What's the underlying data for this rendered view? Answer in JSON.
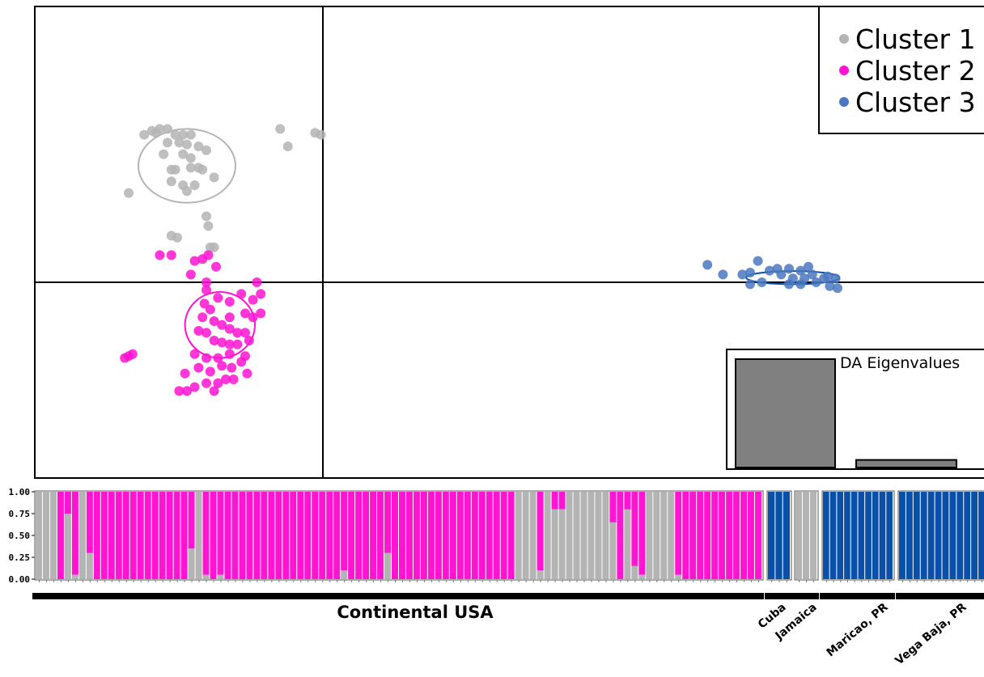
{
  "colors": {
    "cluster1": "#b4b4b4",
    "cluster2": "#ff14d2",
    "cluster3": "#0a4fa8",
    "cluster3_point": "#4a78c0",
    "eigen_bar": "#808080"
  },
  "chart_data": [
    {
      "type": "scatter",
      "title": "",
      "xlabel": "",
      "ylabel": "",
      "axes_lines": "cross at origin",
      "legend_position": "top-right",
      "legend": [
        "Cluster 1",
        "Cluster 2",
        "Cluster 3"
      ],
      "series": [
        {
          "name": "Cluster 1",
          "points": [
            [
              -4.6,
              3.8
            ],
            [
              -4.4,
              3.9
            ],
            [
              -4.2,
              3.95
            ],
            [
              -4.0,
              3.95
            ],
            [
              -4.3,
              3.85
            ],
            [
              -3.8,
              3.8
            ],
            [
              -3.6,
              3.8
            ],
            [
              -3.4,
              3.8
            ],
            [
              -4.0,
              3.6
            ],
            [
              -3.7,
              3.6
            ],
            [
              -3.5,
              3.55
            ],
            [
              -3.2,
              3.5
            ],
            [
              -3.0,
              3.4
            ],
            [
              -4.1,
              3.3
            ],
            [
              -3.6,
              3.3
            ],
            [
              -3.4,
              3.2
            ],
            [
              -3.9,
              2.9
            ],
            [
              -3.8,
              2.9
            ],
            [
              -3.4,
              2.95
            ],
            [
              -3.2,
              2.95
            ],
            [
              -3.1,
              2.9
            ],
            [
              -3.9,
              2.6
            ],
            [
              -3.6,
              2.5
            ],
            [
              -3.3,
              2.5
            ],
            [
              -3.5,
              2.35
            ],
            [
              -5.0,
              2.3
            ],
            [
              -2.8,
              2.7
            ],
            [
              -1.1,
              3.95
            ],
            [
              -0.9,
              3.5
            ],
            [
              -0.2,
              3.85
            ],
            [
              -0.05,
              3.8
            ],
            [
              -3.0,
              1.7
            ],
            [
              -2.95,
              1.45
            ],
            [
              -3.9,
              1.2
            ],
            [
              -3.75,
              1.15
            ],
            [
              -2.9,
              0.9
            ],
            [
              -2.8,
              0.9
            ]
          ]
        },
        {
          "name": "Cluster 2",
          "points": [
            [
              -4.2,
              0.7
            ],
            [
              -3.9,
              0.7
            ],
            [
              -3.3,
              0.55
            ],
            [
              -3.1,
              0.6
            ],
            [
              -2.95,
              0.7
            ],
            [
              -2.75,
              0.4
            ],
            [
              -3.4,
              0.2
            ],
            [
              -3.0,
              0.0
            ],
            [
              -3.0,
              -0.2
            ],
            [
              -2.7,
              -0.4
            ],
            [
              -2.4,
              -0.5
            ],
            [
              -2.1,
              -0.3
            ],
            [
              -1.7,
              0.0
            ],
            [
              -1.6,
              -0.3
            ],
            [
              -1.8,
              -0.45
            ],
            [
              -1.6,
              -0.8
            ],
            [
              -1.8,
              -0.9
            ],
            [
              -2.0,
              -0.8
            ],
            [
              -2.4,
              -0.9
            ],
            [
              -3.05,
              -0.55
            ],
            [
              -2.9,
              -0.7
            ],
            [
              -3.1,
              -0.9
            ],
            [
              -2.8,
              -1.0
            ],
            [
              -3.2,
              -1.25
            ],
            [
              -3.0,
              -1.3
            ],
            [
              -2.6,
              -1.1
            ],
            [
              -2.4,
              -1.2
            ],
            [
              -2.2,
              -1.3
            ],
            [
              -2.0,
              -1.3
            ],
            [
              -2.8,
              -1.5
            ],
            [
              -2.6,
              -1.55
            ],
            [
              -2.4,
              -1.6
            ],
            [
              -2.2,
              -1.6
            ],
            [
              -1.9,
              -1.5
            ],
            [
              -2.0,
              -1.9
            ],
            [
              -2.4,
              -1.85
            ],
            [
              -2.7,
              -1.95
            ],
            [
              -3.0,
              -1.95
            ],
            [
              -3.3,
              -1.85
            ],
            [
              -3.2,
              -2.2
            ],
            [
              -2.9,
              -2.3
            ],
            [
              -2.6,
              -2.15
            ],
            [
              -2.35,
              -2.2
            ],
            [
              -2.1,
              -2.05
            ],
            [
              -2.5,
              -2.5
            ],
            [
              -2.7,
              -2.6
            ],
            [
              -3.0,
              -2.6
            ],
            [
              -3.3,
              -2.7
            ],
            [
              -3.55,
              -2.35
            ],
            [
              -2.8,
              -2.8
            ],
            [
              -2.3,
              -2.5
            ],
            [
              -1.95,
              -2.35
            ],
            [
              -5.0,
              -1.9
            ],
            [
              -5.1,
              -1.95
            ],
            [
              -4.9,
              -1.85
            ],
            [
              -3.7,
              -2.8
            ],
            [
              -3.5,
              -2.8
            ]
          ]
        },
        {
          "name": "Cluster 3",
          "points": [
            [
              9.9,
              0.45
            ],
            [
              10.3,
              0.2
            ],
            [
              10.8,
              0.2
            ],
            [
              11.0,
              0.25
            ],
            [
              11.2,
              0.55
            ],
            [
              11.3,
              0.0
            ],
            [
              11.0,
              -0.05
            ],
            [
              11.7,
              0.35
            ],
            [
              12.0,
              0.35
            ],
            [
              12.3,
              0.3
            ],
            [
              12.5,
              0.4
            ],
            [
              12.6,
              0.2
            ],
            [
              12.4,
              0.1
            ],
            [
              12.1,
              0.1
            ],
            [
              12.0,
              -0.05
            ],
            [
              12.3,
              -0.05
            ],
            [
              12.7,
              0.0
            ],
            [
              12.9,
              0.1
            ],
            [
              13.0,
              0.15
            ],
            [
              13.2,
              0.1
            ],
            [
              13.05,
              -0.1
            ],
            [
              13.25,
              -0.15
            ],
            [
              11.8,
              0.2
            ],
            [
              11.5,
              0.3
            ]
          ]
        }
      ],
      "ellipses": [
        {
          "series": "Cluster 1",
          "center": [
            -3.5,
            3.0
          ],
          "rx": 1.25,
          "ry": 0.95
        },
        {
          "series": "Cluster 2",
          "center": [
            -2.65,
            -1.1
          ],
          "rx": 0.9,
          "ry": 0.85
        },
        {
          "series": "Cluster 3",
          "center": [
            12.1,
            0.12
          ],
          "rx": 1.2,
          "ry": 0.17
        }
      ]
    },
    {
      "type": "bar",
      "title": "DA Eigenvalues",
      "values": [
        100,
        7
      ]
    },
    {
      "type": "bar",
      "subtype": "stacked_structure",
      "ylabel": "",
      "yticks": [
        "0.00",
        "0.25",
        "0.50",
        "0.75",
        "1.00"
      ],
      "series_names": [
        "Cluster 1",
        "Cluster 2",
        "Cluster 3"
      ],
      "populations": [
        {
          "name": "Continental USA",
          "segments": [
            [
              1,
              0
            ],
            [
              1,
              0
            ],
            [
              1,
              0
            ],
            [
              0,
              1
            ],
            [
              0.75,
              0.25
            ],
            [
              0.05,
              0.95
            ],
            [
              1,
              0
            ],
            [
              0.3,
              0.7
            ],
            [
              0,
              1
            ],
            [
              0,
              1
            ],
            [
              0,
              1
            ],
            [
              0,
              1
            ],
            [
              0,
              1
            ],
            [
              0,
              1
            ],
            [
              0,
              1
            ],
            [
              0,
              1
            ],
            [
              0,
              1
            ],
            [
              0,
              1
            ],
            [
              0,
              1
            ],
            [
              0,
              1
            ],
            [
              0,
              1
            ],
            [
              0.35,
              0.65
            ],
            [
              1,
              0
            ],
            [
              0.05,
              0.95
            ],
            [
              0,
              1
            ],
            [
              0.05,
              0.95
            ],
            [
              0,
              1
            ],
            [
              0,
              1
            ],
            [
              0,
              1
            ],
            [
              0,
              1
            ],
            [
              0,
              1
            ],
            [
              0,
              1
            ],
            [
              0,
              1
            ],
            [
              0,
              1
            ],
            [
              0,
              1
            ],
            [
              0,
              1
            ],
            [
              0,
              1
            ],
            [
              0,
              1
            ],
            [
              0,
              1
            ],
            [
              0,
              1
            ],
            [
              0,
              1
            ],
            [
              0,
              1
            ],
            [
              0.1,
              0.9
            ],
            [
              0,
              1
            ],
            [
              0,
              1
            ],
            [
              0,
              1
            ],
            [
              0,
              1
            ],
            [
              0,
              1
            ],
            [
              0.3,
              0.7
            ],
            [
              0,
              1
            ],
            [
              0,
              1
            ],
            [
              0,
              1
            ],
            [
              0,
              1
            ],
            [
              0,
              1
            ],
            [
              0,
              1
            ],
            [
              0,
              1
            ],
            [
              0,
              1
            ],
            [
              0,
              1
            ],
            [
              0,
              1
            ],
            [
              0,
              1
            ],
            [
              0,
              1
            ],
            [
              0,
              1
            ],
            [
              0,
              1
            ],
            [
              0,
              1
            ],
            [
              0,
              1
            ],
            [
              0,
              1
            ],
            [
              1,
              0
            ],
            [
              1,
              0
            ],
            [
              1,
              0
            ],
            [
              0.1,
              0.9
            ],
            [
              1,
              0
            ],
            [
              0.8,
              0.2
            ],
            [
              0.8,
              0.2
            ],
            [
              1,
              0
            ],
            [
              1,
              0
            ],
            [
              1,
              0
            ],
            [
              1,
              0
            ],
            [
              1,
              0
            ],
            [
              1,
              0
            ],
            [
              0.65,
              0.35
            ],
            [
              0,
              1
            ],
            [
              0.8,
              0.2
            ],
            [
              0.15,
              0.85
            ],
            [
              0.05,
              0.95
            ],
            [
              1,
              0
            ],
            [
              1,
              0
            ],
            [
              1,
              0
            ],
            [
              1,
              0
            ],
            [
              0.05,
              0.95
            ],
            [
              0,
              1
            ],
            [
              0,
              1
            ],
            [
              0,
              1
            ],
            [
              0,
              1
            ],
            [
              0,
              1
            ],
            [
              0,
              1
            ],
            [
              0,
              1
            ],
            [
              0,
              1
            ],
            [
              0,
              1
            ],
            [
              0,
              1
            ],
            [
              0,
              1
            ]
          ]
        },
        {
          "name": "Cuba",
          "segments": [
            [
              0,
              0,
              1
            ],
            [
              0,
              0,
              1
            ],
            [
              0,
              0,
              1
            ]
          ]
        },
        {
          "name": "Jamaica",
          "segments": [
            [
              1,
              0
            ],
            [
              1,
              0
            ],
            [
              1,
              0
            ]
          ]
        },
        {
          "name": "Maricao, PR",
          "segments": [
            [
              0,
              0,
              1
            ],
            [
              0,
              0,
              1
            ],
            [
              0,
              0,
              1
            ],
            [
              0,
              0,
              1
            ],
            [
              0,
              0,
              1
            ],
            [
              0,
              0,
              1
            ],
            [
              0,
              0,
              1
            ],
            [
              0,
              0,
              1
            ],
            [
              0,
              0,
              1
            ],
            [
              0,
              0,
              1
            ]
          ]
        },
        {
          "name": "Vega Baja, PR",
          "segments": [
            [
              0,
              0,
              1
            ],
            [
              0,
              0,
              1
            ],
            [
              0,
              0,
              1
            ],
            [
              0,
              0,
              1
            ],
            [
              0,
              0,
              1
            ],
            [
              0,
              0,
              1
            ],
            [
              0,
              0,
              1
            ],
            [
              0,
              0,
              1
            ],
            [
              0,
              0,
              1
            ],
            [
              0,
              0,
              1
            ],
            [
              0,
              0,
              1
            ],
            [
              0,
              0,
              1
            ]
          ]
        }
      ]
    }
  ]
}
